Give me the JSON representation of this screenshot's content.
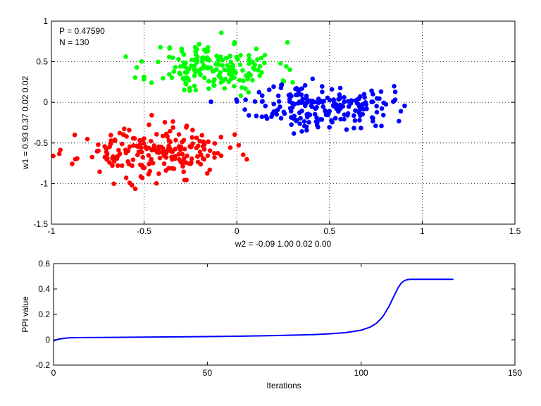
{
  "chart_data": [
    {
      "type": "scatter",
      "xlabel": "w2 = -0.09  1.00  0.02  0.00",
      "ylabel": "w1 = 0.93  0.37  0.02  0.02",
      "xlim": [
        -1,
        1.5
      ],
      "ylim": [
        -1.5,
        1
      ],
      "xticks": [
        -1,
        -0.5,
        0,
        0.5,
        1,
        1.5
      ],
      "xtick_labels": [
        "-1",
        "-0.5",
        "0",
        "0.5",
        "1",
        "1.5"
      ],
      "yticks": [
        -1.5,
        -1,
        -0.5,
        0,
        0.5,
        1
      ],
      "ytick_labels": [
        "-1.5",
        "-1",
        "-0.5",
        "0",
        "0.5",
        "1"
      ],
      "grid": true,
      "annotations": [
        "P = 0.47590",
        "N = 130"
      ],
      "series": [
        {
          "color": "#00ff00",
          "center": [
            -0.12,
            0.42
          ],
          "spread": [
            0.17,
            0.16
          ],
          "count": 180,
          "seed": 11
        },
        {
          "color": "#ff0000",
          "center": [
            -0.45,
            -0.62
          ],
          "spread": [
            0.2,
            0.15
          ],
          "count": 210,
          "seed": 23
        },
        {
          "color": "#0000ff",
          "center": [
            0.45,
            -0.05
          ],
          "spread": [
            0.19,
            0.14
          ],
          "count": 210,
          "seed": 37
        }
      ]
    },
    {
      "type": "line",
      "xlabel": "Iterations",
      "ylabel": "PPI value",
      "xlim": [
        0,
        150
      ],
      "ylim": [
        -0.2,
        0.6
      ],
      "xticks": [
        0,
        50,
        100,
        150
      ],
      "xtick_labels": [
        "0",
        "50",
        "100",
        "150"
      ],
      "yticks": [
        -0.2,
        0,
        0.2,
        0.4,
        0.6
      ],
      "ytick_labels": [
        "-0.2",
        "0",
        "0.2",
        "0.4",
        "0.6"
      ],
      "grid": false,
      "series": [
        {
          "color": "#0000ff",
          "x": [
            0,
            1,
            2,
            3,
            4,
            5,
            10,
            20,
            30,
            40,
            50,
            60,
            70,
            80,
            85,
            90,
            95,
            100,
            103,
            105,
            107,
            109,
            110,
            111,
            112,
            113,
            114,
            115,
            116,
            118,
            120,
            125,
            130
          ],
          "y": [
            -0.01,
            0.0,
            0.006,
            0.01,
            0.013,
            0.015,
            0.017,
            0.019,
            0.021,
            0.023,
            0.025,
            0.028,
            0.032,
            0.037,
            0.041,
            0.047,
            0.056,
            0.075,
            0.1,
            0.13,
            0.18,
            0.26,
            0.31,
            0.36,
            0.41,
            0.445,
            0.465,
            0.474,
            0.476,
            0.4759,
            0.4759,
            0.4759,
            0.4759
          ]
        }
      ]
    }
  ]
}
